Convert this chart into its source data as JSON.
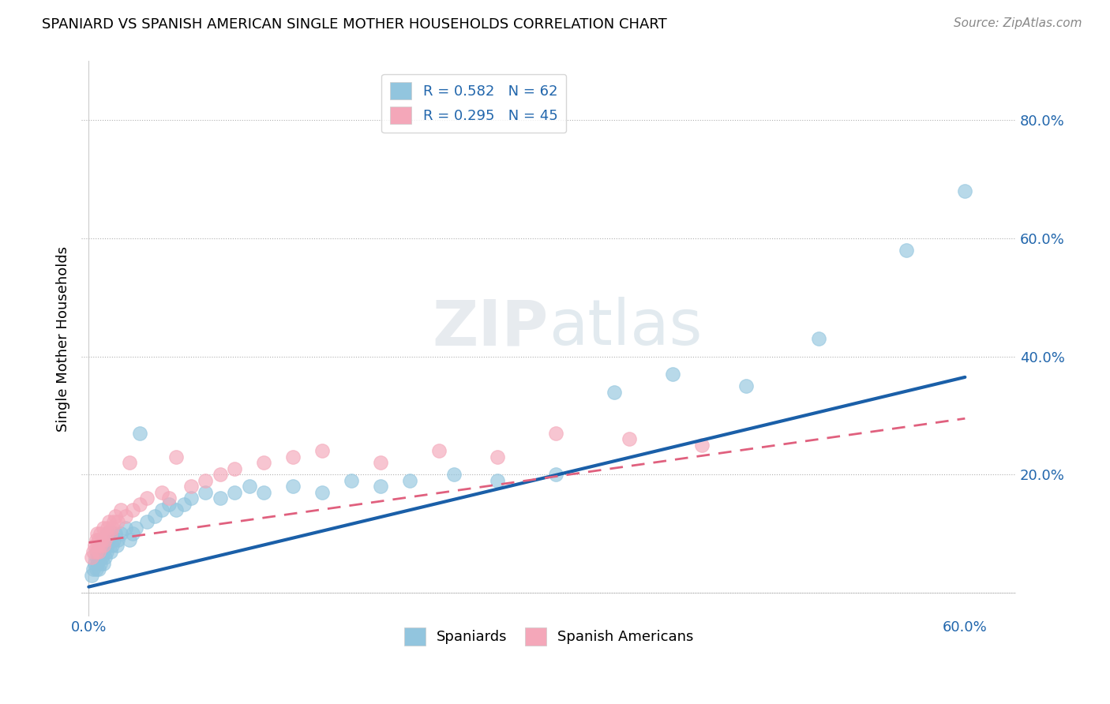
{
  "title": "SPANIARD VS SPANISH AMERICAN SINGLE MOTHER HOUSEHOLDS CORRELATION CHART",
  "source": "Source: ZipAtlas.com",
  "ylabel": "Single Mother Households",
  "ytick_labels": [
    "",
    "20.0%",
    "40.0%",
    "60.0%",
    "80.0%"
  ],
  "ytick_values": [
    0.0,
    0.2,
    0.4,
    0.6,
    0.8
  ],
  "xlim": [
    -0.005,
    0.635
  ],
  "ylim": [
    -0.04,
    0.9
  ],
  "legend1_label": "R = 0.582   N = 62",
  "legend2_label": "R = 0.295   N = 45",
  "legend_bottom_label1": "Spaniards",
  "legend_bottom_label2": "Spanish Americans",
  "color_blue": "#92c5de",
  "color_pink": "#f4a7b9",
  "color_line_blue": "#1a5fa8",
  "color_line_pink": "#e0607e",
  "watermark": "ZIPatlas",
  "spaniards_x": [
    0.002,
    0.003,
    0.004,
    0.005,
    0.005,
    0.006,
    0.006,
    0.007,
    0.007,
    0.008,
    0.008,
    0.009,
    0.009,
    0.01,
    0.01,
    0.01,
    0.011,
    0.011,
    0.012,
    0.012,
    0.013,
    0.013,
    0.014,
    0.015,
    0.015,
    0.016,
    0.017,
    0.018,
    0.019,
    0.02,
    0.022,
    0.025,
    0.028,
    0.03,
    0.032,
    0.035,
    0.04,
    0.045,
    0.05,
    0.055,
    0.06,
    0.065,
    0.07,
    0.08,
    0.09,
    0.1,
    0.11,
    0.12,
    0.14,
    0.16,
    0.18,
    0.2,
    0.22,
    0.25,
    0.28,
    0.32,
    0.36,
    0.4,
    0.45,
    0.5,
    0.56,
    0.6
  ],
  "spaniards_y": [
    0.03,
    0.04,
    0.05,
    0.04,
    0.06,
    0.05,
    0.07,
    0.04,
    0.06,
    0.05,
    0.07,
    0.06,
    0.08,
    0.05,
    0.07,
    0.09,
    0.06,
    0.08,
    0.07,
    0.09,
    0.08,
    0.1,
    0.09,
    0.07,
    0.1,
    0.08,
    0.09,
    0.1,
    0.08,
    0.09,
    0.1,
    0.11,
    0.09,
    0.1,
    0.11,
    0.27,
    0.12,
    0.13,
    0.14,
    0.15,
    0.14,
    0.15,
    0.16,
    0.17,
    0.16,
    0.17,
    0.18,
    0.17,
    0.18,
    0.17,
    0.19,
    0.18,
    0.19,
    0.2,
    0.19,
    0.2,
    0.34,
    0.37,
    0.35,
    0.43,
    0.58,
    0.68
  ],
  "spanish_americans_x": [
    0.002,
    0.003,
    0.004,
    0.005,
    0.005,
    0.006,
    0.006,
    0.007,
    0.007,
    0.008,
    0.008,
    0.009,
    0.01,
    0.01,
    0.011,
    0.012,
    0.013,
    0.014,
    0.015,
    0.016,
    0.017,
    0.018,
    0.02,
    0.022,
    0.025,
    0.028,
    0.03,
    0.035,
    0.04,
    0.05,
    0.055,
    0.06,
    0.07,
    0.08,
    0.09,
    0.1,
    0.12,
    0.14,
    0.16,
    0.2,
    0.24,
    0.28,
    0.32,
    0.37,
    0.42
  ],
  "spanish_americans_y": [
    0.06,
    0.07,
    0.08,
    0.07,
    0.09,
    0.08,
    0.1,
    0.07,
    0.09,
    0.08,
    0.1,
    0.09,
    0.08,
    0.11,
    0.09,
    0.1,
    0.11,
    0.12,
    0.1,
    0.11,
    0.12,
    0.13,
    0.12,
    0.14,
    0.13,
    0.22,
    0.14,
    0.15,
    0.16,
    0.17,
    0.16,
    0.23,
    0.18,
    0.19,
    0.2,
    0.21,
    0.22,
    0.23,
    0.24,
    0.22,
    0.24,
    0.23,
    0.27,
    0.26,
    0.25
  ],
  "blue_line_x0": 0.0,
  "blue_line_y0": 0.01,
  "blue_line_x1": 0.6,
  "blue_line_y1": 0.365,
  "pink_line_x0": 0.0,
  "pink_line_y0": 0.085,
  "pink_line_x1": 0.6,
  "pink_line_y1": 0.295
}
